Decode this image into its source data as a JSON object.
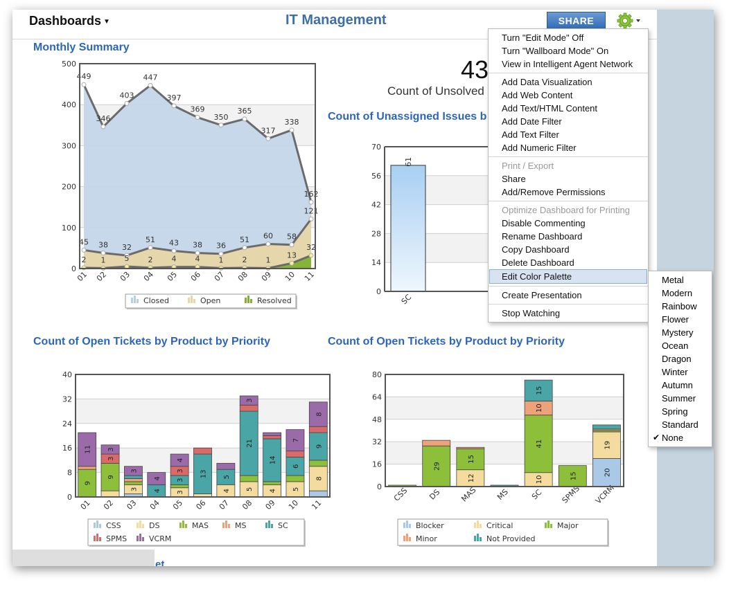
{
  "header": {
    "dashboards_label": "Dashboards",
    "title": "IT Management",
    "share_label": "SHARE"
  },
  "colors": {
    "accent": "#3f6fa8",
    "title_blue": "#2d66b7",
    "share_blue": "#2f69b2",
    "strip": "#c5d4de"
  },
  "icons": {
    "gear": "gear-icon",
    "dropdown": "caret-down-icon",
    "check": "check-icon"
  },
  "kpi": {
    "value": "43",
    "label": "Count of Unsolved"
  },
  "panels": {
    "monthly": "Monthly Summary",
    "unassigned": "Count of Unassigned Issues b",
    "priority_left": "Count of Open Tickets by Product by Priority",
    "priority_right": "Count of Open Tickets by Product by Priority",
    "bottom_partial": "et"
  },
  "menu": {
    "groups": [
      [
        {
          "label": "Turn \"Edit Mode\" Off"
        },
        {
          "label": "Turn \"Wallboard Mode\" On"
        },
        {
          "label": "View in Intelligent Agent Network"
        }
      ],
      [
        {
          "label": "Add Data Visualization"
        },
        {
          "label": "Add Web Content"
        },
        {
          "label": "Add Text/HTML Content"
        },
        {
          "label": "Add Date Filter"
        },
        {
          "label": "Add Text Filter"
        },
        {
          "label": "Add Numeric Filter"
        }
      ],
      [
        {
          "label": "Print / Export",
          "disabled": true
        },
        {
          "label": "Share"
        },
        {
          "label": "Add/Remove Permissions"
        }
      ],
      [
        {
          "label": "Optimize Dashboard for Printing",
          "disabled": true
        },
        {
          "label": "Disable Commenting"
        },
        {
          "label": "Rename Dashboard"
        },
        {
          "label": "Copy Dashboard"
        },
        {
          "label": "Delete Dashboard"
        },
        {
          "label": "Edit Color Palette",
          "highlighted": true
        }
      ],
      [
        {
          "label": "Create Presentation"
        }
      ],
      [
        {
          "label": "Stop Watching"
        }
      ]
    ]
  },
  "palette_menu": {
    "options": [
      "Metal",
      "Modern",
      "Rainbow",
      "Flower",
      "Mystery",
      "Ocean",
      "Dragon",
      "Winter",
      "Autumn",
      "Summer",
      "Spring",
      "Standard",
      "None"
    ],
    "selected": "None",
    "check_glyph": "✔"
  },
  "chart_data": [
    {
      "type": "area",
      "title": "Monthly Summary",
      "x": [
        "01",
        "02",
        "03",
        "04",
        "05",
        "06",
        "07",
        "08",
        "09",
        "10",
        "11"
      ],
      "ylim": [
        0,
        500
      ],
      "yticks": [
        0,
        100,
        200,
        300,
        400,
        500
      ],
      "series": [
        {
          "name": "Closed",
          "values": [
            449,
            346,
            403,
            447,
            397,
            369,
            350,
            365,
            317,
            338,
            162
          ],
          "color": "#b8d0e6"
        },
        {
          "name": "Open",
          "values": [
            45,
            38,
            32,
            51,
            43,
            38,
            36,
            51,
            60,
            58,
            121
          ],
          "color": "#e8d6a8"
        },
        {
          "name": "Resolved",
          "values": [
            2,
            1,
            5,
            2,
            4,
            4,
            1,
            2,
            1,
            13,
            32
          ],
          "color": "#7fb230"
        }
      ],
      "legend": "bottom",
      "grid": true
    },
    {
      "type": "bar",
      "title": "Count of Unassigned Issues b",
      "categories": [
        "SC"
      ],
      "values": [
        61
      ],
      "ylim": [
        0,
        70
      ],
      "yticks": [
        0,
        14,
        28,
        42,
        56,
        70
      ],
      "color": "#bcd8f2",
      "grid": true
    },
    {
      "type": "bar",
      "stacked": true,
      "title": "Count of Open Tickets by Product by Priority",
      "categories": [
        "01",
        "02",
        "03",
        "04",
        "05",
        "06",
        "07",
        "08",
        "09",
        "10",
        "11"
      ],
      "ylim": [
        0,
        40
      ],
      "yticks": [
        0,
        8,
        16,
        24,
        32,
        40
      ],
      "series": [
        {
          "name": "CSS",
          "color": "#a9c9e6",
          "values": [
            0,
            0,
            1,
            0,
            0,
            0,
            0,
            0,
            0,
            0,
            2
          ]
        },
        {
          "name": "DS",
          "color": "#f3dc9e",
          "values": [
            0,
            2,
            3,
            0,
            3,
            1,
            4,
            5,
            4,
            5,
            8
          ]
        },
        {
          "name": "MAS",
          "color": "#8dbf3a",
          "values": [
            9,
            9,
            1,
            0,
            1,
            0,
            0,
            2,
            1,
            2,
            2
          ]
        },
        {
          "name": "MS",
          "color": "#eea27a",
          "values": [
            1,
            0,
            1,
            0,
            0,
            0,
            0,
            0,
            0,
            0,
            0
          ]
        },
        {
          "name": "SC",
          "color": "#4aa6a6",
          "values": [
            0,
            0,
            1,
            4,
            3,
            13,
            5,
            21,
            14,
            6,
            9
          ]
        },
        {
          "name": "SPMS",
          "color": "#d96a6a",
          "values": [
            0,
            3,
            0,
            0,
            3,
            2,
            0,
            2,
            1,
            2,
            2
          ]
        },
        {
          "name": "VCRM",
          "color": "#9b6aa8",
          "values": [
            11,
            3,
            3,
            4,
            4,
            0,
            2,
            3,
            1,
            7,
            8
          ]
        }
      ],
      "legend": "bottom",
      "grid": true
    },
    {
      "type": "bar",
      "stacked": true,
      "title": "Count of Open Tickets by Product by Priority",
      "categories": [
        "CSS",
        "DS",
        "MAS",
        "MS",
        "SC",
        "SPMS",
        "VCRM"
      ],
      "ylim": [
        0,
        80
      ],
      "yticks": [
        0,
        16,
        32,
        48,
        64,
        80
      ],
      "series": [
        {
          "name": "Blocker",
          "color": "#a9c9e6",
          "values": [
            0,
            0,
            0,
            0,
            0,
            0,
            20
          ]
        },
        {
          "name": "Critical",
          "color": "#f3dc9e",
          "values": [
            0,
            0,
            12,
            0,
            10,
            0,
            19
          ]
        },
        {
          "name": "Major",
          "color": "#8dbf3a",
          "values": [
            1,
            29,
            15,
            0,
            41,
            15,
            1
          ]
        },
        {
          "name": "Minor",
          "color": "#eea27a",
          "values": [
            0,
            4,
            1,
            0,
            10,
            0,
            1
          ]
        },
        {
          "name": "Not Provided",
          "color": "#4aa6a6",
          "values": [
            0,
            0,
            0,
            1,
            15,
            0,
            3
          ]
        }
      ],
      "legend": "bottom",
      "grid": true
    }
  ]
}
